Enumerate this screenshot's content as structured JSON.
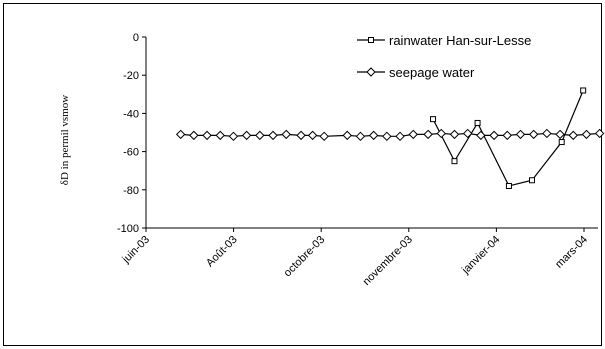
{
  "chart_data": {
    "type": "line",
    "title": "",
    "xlabel": "",
    "ylabel": "δD in permil vsmow",
    "ylim": [
      -100,
      0
    ],
    "yticks": [
      0,
      -20,
      -40,
      -60,
      -80,
      -100
    ],
    "x_axis_ticks": [
      "juin-03",
      "Août-03",
      "octobre-03",
      "novembre-03",
      "janvier-04",
      "mars-04"
    ],
    "x_axis_range": [
      "2003-06-01",
      "2004-03-01"
    ],
    "grid": false,
    "legend_position": "top-right",
    "series": [
      {
        "name": "rainwater Han-sur-Lesse",
        "marker": "square",
        "points": [
          {
            "date": "2003-11-22",
            "value": -43
          },
          {
            "date": "2003-12-05",
            "value": -65
          },
          {
            "date": "2003-12-19",
            "value": -45
          },
          {
            "date": "2004-01-07",
            "value": -78
          },
          {
            "date": "2004-01-21",
            "value": -75
          },
          {
            "date": "2004-02-08",
            "value": -55
          },
          {
            "date": "2004-02-21",
            "value": -28
          }
        ]
      },
      {
        "name": "seepage water",
        "marker": "diamond",
        "points": [
          {
            "date": "2003-06-22",
            "value": -51
          },
          {
            "date": "2003-06-30",
            "value": -51.5
          },
          {
            "date": "2003-07-08",
            "value": -51.5
          },
          {
            "date": "2003-07-16",
            "value": -51.5
          },
          {
            "date": "2003-07-24",
            "value": -52
          },
          {
            "date": "2003-08-01",
            "value": -51.5
          },
          {
            "date": "2003-08-09",
            "value": -51.5
          },
          {
            "date": "2003-08-17",
            "value": -51.5
          },
          {
            "date": "2003-08-25",
            "value": -51
          },
          {
            "date": "2003-09-03",
            "value": -51.5
          },
          {
            "date": "2003-09-10",
            "value": -51.5
          },
          {
            "date": "2003-09-17",
            "value": -52
          },
          {
            "date": "2003-10-01",
            "value": -51.5
          },
          {
            "date": "2003-10-09",
            "value": -52
          },
          {
            "date": "2003-10-17",
            "value": -51.5
          },
          {
            "date": "2003-10-25",
            "value": -52
          },
          {
            "date": "2003-11-02",
            "value": -52
          },
          {
            "date": "2003-11-10",
            "value": -51
          },
          {
            "date": "2003-11-19",
            "value": -51
          },
          {
            "date": "2003-11-27",
            "value": -50.5
          },
          {
            "date": "2003-12-05",
            "value": -51
          },
          {
            "date": "2003-12-13",
            "value": -50.5
          },
          {
            "date": "2003-12-21",
            "value": -51.5
          },
          {
            "date": "2003-12-29",
            "value": -51.5
          },
          {
            "date": "2004-01-06",
            "value": -51.5
          },
          {
            "date": "2004-01-14",
            "value": -51
          },
          {
            "date": "2004-01-22",
            "value": -51
          },
          {
            "date": "2004-01-30",
            "value": -50.5
          },
          {
            "date": "2004-02-07",
            "value": -51
          },
          {
            "date": "2004-02-15",
            "value": -51.5
          },
          {
            "date": "2004-02-23",
            "value": -51
          },
          {
            "date": "2004-03-02",
            "value": -50.5
          }
        ]
      }
    ],
    "colors": {
      "line": "#000000",
      "marker_fill": "#ffffff",
      "background": "#ffffff"
    }
  }
}
